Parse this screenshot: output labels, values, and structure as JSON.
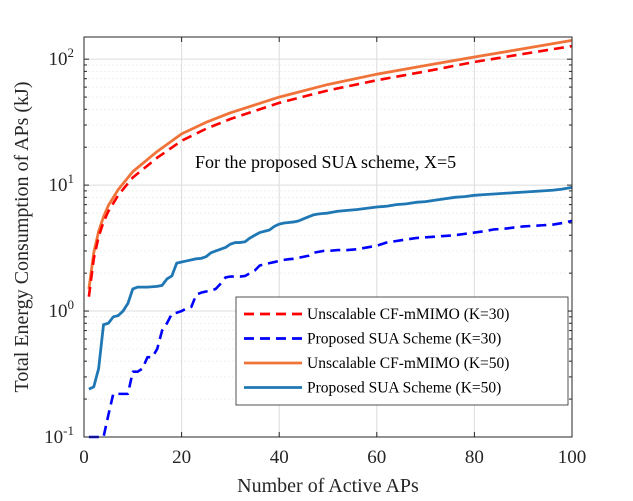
{
  "chart_data": {
    "type": "line",
    "title": "",
    "annotation": "For the proposed SUA scheme, X=5",
    "xlabel": "Number of Active APs",
    "ylabel": "Total Energy Consumption of APs (kJ)",
    "xlim": [
      0,
      100
    ],
    "ylim": [
      0.1,
      150
    ],
    "yscale": "log",
    "grid": true,
    "legend_position": "bottom-right",
    "xticks": [
      0,
      20,
      40,
      60,
      80,
      100
    ],
    "x_tick_labels": [
      "0",
      "20",
      "40",
      "60",
      "80",
      "100"
    ],
    "yticks": [
      0.1,
      1,
      10,
      100
    ],
    "y_tick_labels": [
      {
        "base": "10",
        "exp": "-1"
      },
      {
        "base": "10",
        "exp": "0"
      },
      {
        "base": "10",
        "exp": "1"
      },
      {
        "base": "10",
        "exp": "2"
      }
    ],
    "series": [
      {
        "name": "Unscalable CF-mMIMO (K=30)",
        "color": "#ff0000",
        "style": "dashed",
        "x": [
          1,
          2,
          3,
          4,
          5,
          7,
          10,
          15,
          20,
          25,
          30,
          40,
          50,
          60,
          70,
          80,
          90,
          100
        ],
        "y": [
          1.3,
          2.6,
          3.9,
          5.1,
          6.2,
          8.3,
          11.5,
          16.5,
          22.5,
          28.0,
          33.5,
          45,
          56.5,
          68,
          80,
          95,
          110,
          127
        ]
      },
      {
        "name": "Proposed SUA Scheme (K=30)",
        "color": "#0000ff",
        "style": "dashed",
        "x": [
          1,
          2,
          3,
          4,
          5,
          6,
          7,
          8,
          9,
          10,
          11,
          12,
          13,
          14,
          15,
          16,
          17,
          18,
          19,
          20,
          21,
          22,
          23,
          24,
          25,
          26,
          27,
          28,
          29,
          30,
          31,
          32,
          33,
          34,
          35,
          36,
          37,
          38,
          39,
          40,
          41,
          42,
          43,
          44,
          45,
          46,
          47,
          48,
          49,
          50,
          52,
          54,
          56,
          58,
          60,
          62,
          64,
          66,
          68,
          70,
          72,
          74,
          76,
          78,
          80,
          82,
          84,
          86,
          88,
          90,
          92,
          94,
          96,
          98,
          100
        ],
        "y": [
          0.1,
          0.1,
          0.1,
          0.1,
          0.15,
          0.22,
          0.22,
          0.22,
          0.22,
          0.33,
          0.33,
          0.35,
          0.43,
          0.43,
          0.5,
          0.7,
          0.8,
          0.95,
          0.97,
          1.0,
          1.05,
          1.08,
          1.35,
          1.4,
          1.43,
          1.45,
          1.5,
          1.65,
          1.85,
          1.88,
          1.88,
          1.88,
          1.9,
          2.0,
          2.1,
          2.3,
          2.35,
          2.4,
          2.45,
          2.5,
          2.55,
          2.58,
          2.6,
          2.65,
          2.7,
          2.75,
          2.9,
          2.95,
          3.0,
          3.0,
          3.05,
          3.05,
          3.1,
          3.2,
          3.3,
          3.5,
          3.6,
          3.7,
          3.8,
          3.85,
          3.9,
          3.95,
          4.0,
          4.1,
          4.2,
          4.3,
          4.45,
          4.5,
          4.6,
          4.7,
          4.75,
          4.8,
          4.85,
          5.0,
          5.2
        ]
      },
      {
        "name": "Unscalable CF-mMIMO (K=50)",
        "color": "#f0743a",
        "style": "solid",
        "x": [
          1,
          2,
          3,
          4,
          5,
          7,
          10,
          15,
          20,
          25,
          30,
          40,
          50,
          60,
          70,
          80,
          90,
          100
        ],
        "y": [
          1.5,
          2.9,
          4.3,
          5.6,
          6.9,
          9.2,
          12.8,
          18.5,
          25.5,
          31.5,
          37.5,
          50,
          63,
          76,
          89,
          104,
          121,
          141
        ]
      },
      {
        "name": "Proposed SUA Scheme (K=50)",
        "color": "#1f77b4",
        "style": "solid",
        "x": [
          1,
          2,
          3,
          4,
          5,
          6,
          7,
          8,
          9,
          10,
          11,
          12,
          13,
          14,
          15,
          16,
          17,
          18,
          19,
          20,
          21,
          22,
          23,
          24,
          25,
          26,
          27,
          28,
          29,
          30,
          31,
          32,
          33,
          34,
          35,
          36,
          37,
          38,
          39,
          40,
          41,
          42,
          43,
          44,
          45,
          46,
          47,
          48,
          49,
          50,
          52,
          54,
          56,
          58,
          60,
          62,
          64,
          66,
          68,
          70,
          72,
          74,
          76,
          78,
          80,
          82,
          84,
          86,
          88,
          90,
          92,
          94,
          96,
          98,
          100
        ],
        "y": [
          0.24,
          0.25,
          0.35,
          0.78,
          0.8,
          0.9,
          0.92,
          1.0,
          1.15,
          1.5,
          1.55,
          1.55,
          1.55,
          1.56,
          1.57,
          1.6,
          1.8,
          1.9,
          2.4,
          2.45,
          2.5,
          2.55,
          2.6,
          2.62,
          2.7,
          2.9,
          3.0,
          3.1,
          3.2,
          3.4,
          3.5,
          3.5,
          3.55,
          3.8,
          4.0,
          4.2,
          4.3,
          4.4,
          4.7,
          4.9,
          5.0,
          5.05,
          5.1,
          5.2,
          5.4,
          5.6,
          5.8,
          5.9,
          5.95,
          6.0,
          6.2,
          6.3,
          6.4,
          6.55,
          6.7,
          6.8,
          7.0,
          7.1,
          7.3,
          7.4,
          7.6,
          7.8,
          8.0,
          8.1,
          8.3,
          8.4,
          8.5,
          8.6,
          8.7,
          8.8,
          8.9,
          9.0,
          9.1,
          9.3,
          9.6
        ]
      }
    ]
  }
}
